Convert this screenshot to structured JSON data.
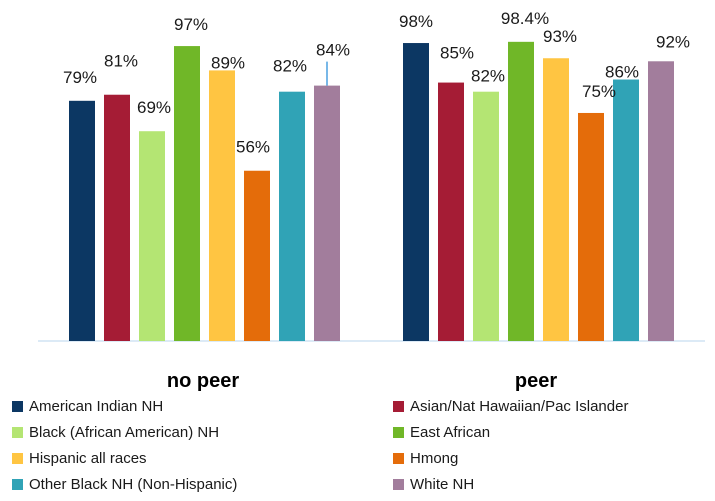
{
  "chart_data": {
    "type": "bar",
    "categories": [
      "no peer",
      "peer"
    ],
    "ylim": [
      0,
      100
    ],
    "series": [
      {
        "name": "American Indian NH",
        "color": "#0c3763",
        "values": [
          79,
          98
        ],
        "labels": [
          "79%",
          "98%"
        ]
      },
      {
        "name": "Asian/Nat Hawaiian/Pac Islander",
        "color": "#a51c35",
        "values": [
          81,
          85
        ],
        "labels": [
          "81%",
          "85%"
        ]
      },
      {
        "name": "Black (African American) NH",
        "color": "#b4e573",
        "values": [
          69,
          82
        ],
        "labels": [
          "69%",
          "82%"
        ]
      },
      {
        "name": "East African",
        "color": "#70b728",
        "values": [
          97,
          98.4
        ],
        "labels": [
          "97%",
          "98.4%"
        ]
      },
      {
        "name": "Hispanic all races",
        "color": "#ffc542",
        "values": [
          89,
          93
        ],
        "labels": [
          "89%",
          "93%"
        ]
      },
      {
        "name": "Hmong",
        "color": "#e46c0a",
        "values": [
          56,
          75
        ],
        "labels": [
          "56%",
          "75%"
        ]
      },
      {
        "name": "Other Black NH (Non-Hispanic)",
        "color": "#30a3b6",
        "values": [
          82,
          86
        ],
        "labels": [
          "82%",
          "86%"
        ]
      },
      {
        "name": "White NH",
        "color": "#a27d9c",
        "values": [
          84,
          92
        ],
        "labels": [
          "84%",
          "92%"
        ]
      }
    ],
    "grid": false,
    "legend_position": "bottom"
  }
}
